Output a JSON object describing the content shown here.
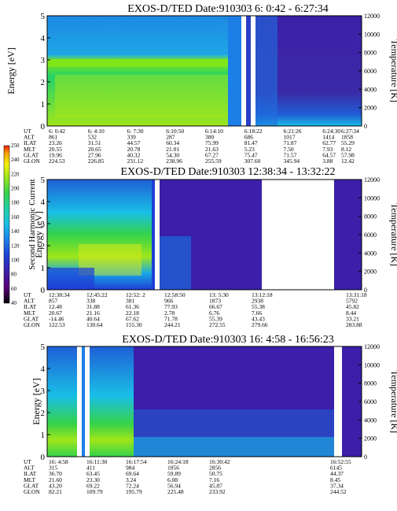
{
  "colorbar": {
    "label": "Second Harmonic Current",
    "ticks": [
      "40",
      "60",
      "80",
      "100",
      "120",
      "140",
      "160",
      "180",
      "200",
      "220",
      "240",
      "250"
    ],
    "colors": [
      "#000000",
      "#5a007a",
      "#3b1fa8",
      "#1f3fd6",
      "#1c7fe8",
      "#19bfe6",
      "#22d2a8",
      "#34d24a",
      "#9fe61a",
      "#f2f20a",
      "#f7a20a",
      "#e8200a"
    ]
  },
  "chart_data": [
    {
      "type": "heatmap",
      "title": "EXOS-D/TED   Date:910303   6: 0:42 - 6:27:34",
      "ylabel": "Energy [eV]",
      "y2label": "Temperature [K]",
      "ylim": [
        0,
        5
      ],
      "y2lim": [
        0,
        12000
      ],
      "yticks": [
        "0",
        "1",
        "2",
        "3",
        "4",
        "5"
      ],
      "y2ticks": [
        "0",
        "2000",
        "4000",
        "6000",
        "8000",
        "10000",
        "12000"
      ],
      "rows": {
        "UT": [
          "6: 0:42",
          "6: 4:10",
          "6: 7:30",
          "6:10:50",
          "6:14:10",
          "6:18:22",
          "6:21:26",
          "6:24:30",
          "6:27:34"
        ],
        "ALT": [
          "861",
          "532",
          "339",
          "287",
          "380",
          "686",
          "1017",
          "1414",
          "1858"
        ],
        "ILAT": [
          "23.26",
          "31.51",
          "44.57",
          "60.34",
          "75.99",
          "81.47",
          "71.87",
          "62.77",
          "55.29"
        ],
        "MLT": [
          "20.55",
          "20.65",
          "20.78",
          "21.01",
          "21.63",
          "5.23",
          "7.50",
          "7.93",
          "8.12"
        ],
        "GLAT": [
          "19.96",
          "27.96",
          "40.32",
          "54.30",
          "67.27",
          "75.47",
          "71.57",
          "64.57",
          "57.98"
        ],
        "GLON": [
          "224.53",
          "226.85",
          "231.12",
          "238.96",
          "255.59",
          "307.60",
          "345.94",
          "3.88",
          "12.42"
        ]
      }
    },
    {
      "type": "heatmap",
      "title": "EXOS-D/TED   Date:910303   12:38:34 - 13:32:22",
      "ylabel": "Energy [eV]",
      "y2label": "Temperature [K]",
      "ylim": [
        0,
        5
      ],
      "y2lim": [
        0,
        12000
      ],
      "yticks": [
        "0",
        "1",
        "2",
        "3",
        "4",
        "5"
      ],
      "y2ticks": [
        "0",
        "2000",
        "4000",
        "6000",
        "8000",
        "10000",
        "12000"
      ],
      "rows": {
        "UT": [
          "12:38:34",
          "12:45:22",
          "12:52: 2",
          "12:58:50",
          "13: 5:30",
          "13:12:18",
          "13:31:18"
        ],
        "ALT": [
          "857",
          "338",
          "381",
          "966",
          "1873",
          "2938",
          "5792"
        ],
        "ILAT": [
          "12.48",
          "31.88",
          "61.36",
          "77.93",
          "66.67",
          "55.38",
          "45.82"
        ],
        "MLT": [
          "20.67",
          "21.16",
          "22.18",
          "2.78",
          "6.76",
          "7.66",
          "8.44"
        ],
        "GLAT": [
          "-14.46",
          "40.64",
          "67.62",
          "71.78",
          "55.39",
          "43.43",
          "33.21"
        ],
        "GLON": [
          "122.53",
          "130.64",
          "155.30",
          "244.21",
          "272.55",
          "279.66",
          "283.88"
        ]
      }
    },
    {
      "type": "heatmap",
      "title": "EXOS-D/TED   Date:910303   16: 4:58 - 16:56:23",
      "ylabel": "Energy [eV]",
      "y2label": "Temperature [K]",
      "ylim": [
        0,
        5
      ],
      "y2lim": [
        0,
        12000
      ],
      "yticks": [
        "0",
        "1",
        "2",
        "3",
        "4",
        "5"
      ],
      "y2ticks": [
        "0",
        "2000",
        "4000",
        "6000",
        "8000",
        "10000",
        "12000"
      ],
      "rows": {
        "UT": [
          "16: 4:58",
          "16:11:30",
          "16:17:54",
          "16:24:18",
          "16:30:42",
          "16:52:55"
        ],
        "ALT": [
          "315",
          "411",
          "984",
          "1856",
          "2856",
          "6145"
        ],
        "ILAT": [
          "36.70",
          "63.45",
          "69.64",
          "59.89",
          "50.75",
          "44.37"
        ],
        "MLT": [
          "21.60",
          "23.30",
          "3.24",
          "6.08",
          "7.16",
          "8.45"
        ],
        "GLAT": [
          "43.20",
          "69.22",
          "72.24",
          "56.94",
          "45.87",
          "37.34"
        ],
        "GLON": [
          "82.21",
          "109.79",
          "195.79",
          "225.48",
          "233.92",
          "244.52"
        ]
      }
    }
  ]
}
